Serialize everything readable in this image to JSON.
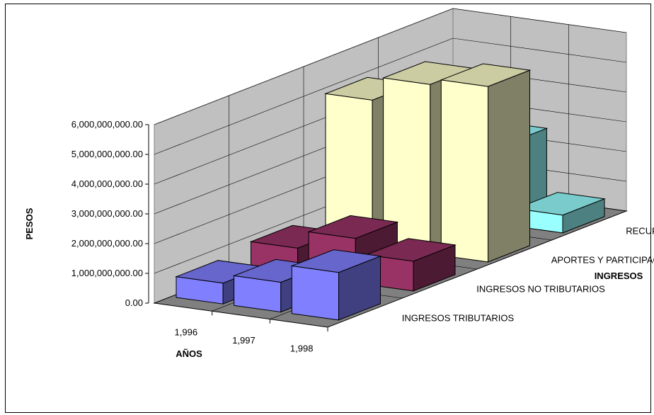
{
  "chart_data": {
    "type": "bar",
    "title": "",
    "xlabel": "AÑOS",
    "ylabel": "PESOS",
    "zlabel": "INGRESOS",
    "categories": [
      "1,996",
      "1,997",
      "1,998"
    ],
    "y_ticks": [
      "0.00",
      "1,000,000,000.00",
      "2,000,000,000.00",
      "3,000,000,000.00",
      "4,000,000,000.00",
      "5,000,000,000.00",
      "6,000,000,000.00"
    ],
    "ylim": [
      0,
      6000000000
    ],
    "series": [
      {
        "name": "INGRESOS TRIBUTARIOS",
        "values": [
          700000000,
          1000000000,
          1600000000
        ],
        "color": "#8080ff"
      },
      {
        "name": "INGRESOS NO TRIBUTARIOS",
        "values": [
          900000000,
          1500000000,
          1000000000
        ],
        "color": "#993366"
      },
      {
        "name": "APORTES Y PARTICIPACIONES",
        "values": [
          4900000000,
          5700000000,
          5900000000
        ],
        "color": "#ffffcc"
      },
      {
        "name": "RECURSOS DE CAPITAL",
        "values": [
          3300000000,
          2700000000,
          600000000
        ],
        "color": "#99ffff"
      }
    ]
  }
}
